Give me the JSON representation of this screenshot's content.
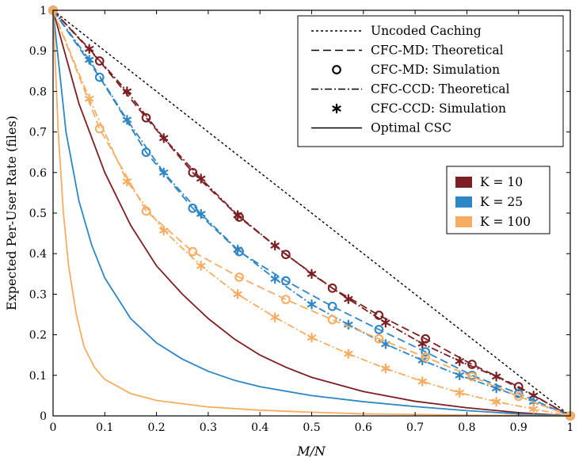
{
  "chart_data": {
    "type": "line",
    "xlabel": "M/N",
    "ylabel": "Expected Per-User Rate (files)",
    "xlim": [
      0,
      1
    ],
    "ylim": [
      0,
      1
    ],
    "xticks": [
      "0",
      "0.1",
      "0.2",
      "0.3",
      "0.4",
      "0.5",
      "0.6",
      "0.7",
      "0.8",
      "0.9",
      "1"
    ],
    "yticks": [
      "0",
      "0.1",
      "0.2",
      "0.3",
      "0.4",
      "0.5",
      "0.6",
      "0.7",
      "0.8",
      "0.9",
      "1"
    ],
    "grid": false,
    "colors": {
      "K10": "#7b1f23",
      "K25": "#2f86c4",
      "K100": "#f6ad62",
      "uncoded": "#000000"
    },
    "style_legend": {
      "placement": "top-right",
      "entries": [
        "Uncoded Caching",
        "CFC-MD: Theoretical",
        "CFC-MD: Simulation",
        "CFC-CCD: Theoretical",
        "CFC-CCD: Simulation",
        "Optimal CSC"
      ]
    },
    "k_legend": {
      "placement": "right",
      "entries": [
        {
          "label": "K = 10",
          "color": "#7b1f23"
        },
        {
          "label": "K = 25",
          "color": "#2f86c4"
        },
        {
          "label": "K = 100",
          "color": "#f6ad62"
        }
      ]
    },
    "series": [
      {
        "group": "uncoded",
        "style": "dotted",
        "color": "#000000",
        "x": [
          0,
          1
        ],
        "y": [
          1,
          0
        ]
      },
      {
        "group": "K=10",
        "style": "dashed",
        "color": "#7b1f23",
        "x": [
          0,
          0.09,
          0.18,
          0.27,
          0.36,
          0.45,
          0.54,
          0.63,
          0.72,
          0.81,
          0.9,
          1
        ],
        "y": [
          1,
          0.875,
          0.735,
          0.6,
          0.49,
          0.398,
          0.315,
          0.248,
          0.19,
          0.127,
          0.072,
          0
        ]
      },
      {
        "group": "K=10",
        "style": "dashdot",
        "color": "#7b1f23",
        "x": [
          0,
          0.07,
          0.143,
          0.214,
          0.286,
          0.357,
          0.429,
          0.5,
          0.571,
          0.643,
          0.714,
          0.786,
          0.857,
          0.929,
          1
        ],
        "y": [
          1,
          0.905,
          0.8,
          0.685,
          0.585,
          0.495,
          0.42,
          0.35,
          0.288,
          0.23,
          0.178,
          0.135,
          0.097,
          0.05,
          0
        ]
      },
      {
        "group": "K=10",
        "style": "solid",
        "color": "#7b1f23",
        "x": [
          0,
          0.05,
          0.1,
          0.15,
          0.2,
          0.25,
          0.3,
          0.35,
          0.4,
          0.45,
          0.5,
          0.6,
          0.7,
          0.8,
          0.9,
          1
        ],
        "y": [
          1,
          0.77,
          0.6,
          0.47,
          0.37,
          0.3,
          0.24,
          0.19,
          0.15,
          0.12,
          0.095,
          0.06,
          0.036,
          0.02,
          0.008,
          0
        ]
      },
      {
        "group": "K=10",
        "style": "circle",
        "color": "#7b1f23",
        "x": [
          0,
          0.09,
          0.18,
          0.27,
          0.36,
          0.45,
          0.54,
          0.63,
          0.72,
          0.81,
          0.9,
          1
        ],
        "y": [
          1,
          0.875,
          0.735,
          0.6,
          0.49,
          0.398,
          0.315,
          0.248,
          0.19,
          0.127,
          0.072,
          0
        ]
      },
      {
        "group": "K=10",
        "style": "star",
        "color": "#7b1f23",
        "x": [
          0,
          0.07,
          0.143,
          0.214,
          0.286,
          0.357,
          0.429,
          0.5,
          0.571,
          0.643,
          0.714,
          0.786,
          0.857,
          0.929,
          1
        ],
        "y": [
          1,
          0.905,
          0.8,
          0.685,
          0.585,
          0.495,
          0.42,
          0.35,
          0.288,
          0.23,
          0.178,
          0.135,
          0.097,
          0.05,
          0
        ]
      },
      {
        "group": "K=25",
        "style": "dashed",
        "color": "#2f86c4",
        "x": [
          0,
          0.09,
          0.18,
          0.27,
          0.36,
          0.45,
          0.54,
          0.63,
          0.72,
          0.81,
          0.9,
          1
        ],
        "y": [
          1,
          0.835,
          0.65,
          0.512,
          0.405,
          0.333,
          0.27,
          0.213,
          0.158,
          0.1,
          0.055,
          0
        ]
      },
      {
        "group": "K=25",
        "style": "dashdot",
        "color": "#2f86c4",
        "x": [
          0,
          0.07,
          0.143,
          0.214,
          0.286,
          0.357,
          0.429,
          0.5,
          0.571,
          0.643,
          0.714,
          0.786,
          0.857,
          0.929,
          1
        ],
        "y": [
          1,
          0.878,
          0.73,
          0.6,
          0.498,
          0.41,
          0.338,
          0.275,
          0.225,
          0.177,
          0.137,
          0.1,
          0.068,
          0.035,
          0
        ]
      },
      {
        "group": "K=25",
        "style": "solid",
        "color": "#2f86c4",
        "x": [
          0,
          0.025,
          0.05,
          0.075,
          0.1,
          0.15,
          0.2,
          0.25,
          0.3,
          0.35,
          0.4,
          0.5,
          0.6,
          0.7,
          0.8,
          0.9,
          1
        ],
        "y": [
          1,
          0.7,
          0.53,
          0.42,
          0.34,
          0.24,
          0.18,
          0.14,
          0.11,
          0.088,
          0.072,
          0.05,
          0.035,
          0.023,
          0.013,
          0.005,
          0
        ]
      },
      {
        "group": "K=25",
        "style": "circle",
        "color": "#2f86c4",
        "x": [
          0,
          0.09,
          0.18,
          0.27,
          0.36,
          0.45,
          0.54,
          0.63,
          0.72,
          0.81,
          0.9,
          1
        ],
        "y": [
          1,
          0.835,
          0.65,
          0.512,
          0.405,
          0.333,
          0.27,
          0.213,
          0.158,
          0.1,
          0.055,
          0
        ]
      },
      {
        "group": "K=25",
        "style": "star",
        "color": "#2f86c4",
        "x": [
          0,
          0.07,
          0.143,
          0.214,
          0.286,
          0.357,
          0.429,
          0.5,
          0.571,
          0.643,
          0.714,
          0.786,
          0.857,
          0.929,
          1
        ],
        "y": [
          1,
          0.878,
          0.73,
          0.6,
          0.498,
          0.41,
          0.338,
          0.275,
          0.225,
          0.177,
          0.137,
          0.1,
          0.068,
          0.035,
          0
        ]
      },
      {
        "group": "K=100",
        "style": "dashed",
        "color": "#f6ad62",
        "x": [
          0,
          0.09,
          0.18,
          0.27,
          0.36,
          0.45,
          0.54,
          0.63,
          0.72,
          0.81,
          0.9,
          1
        ],
        "y": [
          1,
          0.708,
          0.505,
          0.405,
          0.342,
          0.287,
          0.237,
          0.19,
          0.145,
          0.097,
          0.048,
          0
        ]
      },
      {
        "group": "K=100",
        "style": "dashdot",
        "color": "#f6ad62",
        "x": [
          0,
          0.07,
          0.143,
          0.214,
          0.286,
          0.357,
          0.429,
          0.5,
          0.571,
          0.643,
          0.714,
          0.786,
          0.857,
          0.929,
          1
        ],
        "y": [
          1,
          0.782,
          0.578,
          0.457,
          0.37,
          0.3,
          0.243,
          0.193,
          0.153,
          0.117,
          0.085,
          0.057,
          0.035,
          0.017,
          0
        ]
      },
      {
        "group": "K=100",
        "style": "solid",
        "color": "#f6ad62",
        "x": [
          0,
          0.01,
          0.02,
          0.03,
          0.045,
          0.06,
          0.08,
          0.1,
          0.15,
          0.2,
          0.3,
          0.4,
          0.5,
          0.6,
          0.8,
          1
        ],
        "y": [
          1,
          0.7,
          0.5,
          0.37,
          0.25,
          0.17,
          0.12,
          0.09,
          0.055,
          0.038,
          0.022,
          0.014,
          0.009,
          0.005,
          0.002,
          0
        ]
      },
      {
        "group": "K=100",
        "style": "circle",
        "color": "#f6ad62",
        "x": [
          0,
          0.09,
          0.18,
          0.27,
          0.36,
          0.45,
          0.54,
          0.63,
          0.72,
          0.81,
          0.9,
          1
        ],
        "y": [
          1,
          0.708,
          0.505,
          0.405,
          0.342,
          0.287,
          0.237,
          0.19,
          0.145,
          0.097,
          0.048,
          0
        ]
      },
      {
        "group": "K=100",
        "style": "star",
        "color": "#f6ad62",
        "x": [
          0,
          0.07,
          0.143,
          0.214,
          0.286,
          0.357,
          0.429,
          0.5,
          0.571,
          0.643,
          0.714,
          0.786,
          0.857,
          0.929,
          1
        ],
        "y": [
          1,
          0.782,
          0.578,
          0.457,
          0.37,
          0.3,
          0.243,
          0.193,
          0.153,
          0.117,
          0.085,
          0.057,
          0.035,
          0.017,
          0
        ]
      }
    ]
  }
}
